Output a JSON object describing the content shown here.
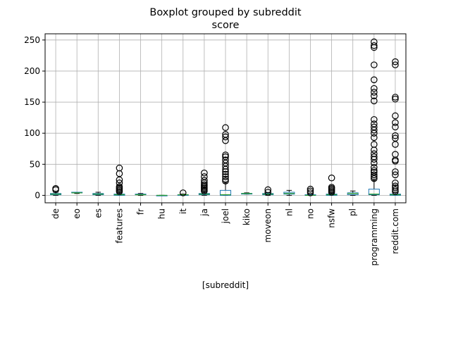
{
  "chart_data": {
    "type": "boxplot",
    "title": "Boxplot grouped by subreddit",
    "subtitle": "score",
    "xlabel": "[subreddit]",
    "ylabel": "",
    "ylim": [
      -12,
      260
    ],
    "yticks": [
      0,
      50,
      100,
      150,
      200,
      250
    ],
    "grid": true,
    "colors": {
      "box": "#1f77b4",
      "median": "#2ca02c",
      "whisker": "#000000",
      "flier": "#000000",
      "grid": "#b0b0b0"
    },
    "categories": [
      "de",
      "eo",
      "es",
      "features",
      "fr",
      "hu",
      "it",
      "ja",
      "joel",
      "kiko",
      "moveon",
      "nl",
      "no",
      "nsfw",
      "pl",
      "programming",
      "reddit.com"
    ],
    "boxes": [
      {
        "category": "de",
        "min": 0,
        "q1": 1,
        "median": 2,
        "q3": 3,
        "max": 5,
        "fliers": [
          9,
          11
        ]
      },
      {
        "category": "eo",
        "min": 3,
        "q1": 4,
        "median": 4,
        "q3": 5,
        "max": 5,
        "fliers": []
      },
      {
        "category": "es",
        "min": 0,
        "q1": 1,
        "median": 2,
        "q3": 3,
        "max": 5,
        "fliers": []
      },
      {
        "category": "features",
        "min": 0,
        "q1": 0,
        "median": 1,
        "q3": 2,
        "max": 4,
        "fliers": [
          6,
          8,
          10,
          12,
          14,
          20,
          25,
          35,
          44
        ]
      },
      {
        "category": "fr",
        "min": 0,
        "q1": 1,
        "median": 1,
        "q3": 2,
        "max": 3,
        "fliers": []
      },
      {
        "category": "hu",
        "min": 0,
        "q1": 0,
        "median": 0,
        "q3": 0,
        "max": 0,
        "fliers": []
      },
      {
        "category": "it",
        "min": 0,
        "q1": 0,
        "median": 1,
        "q3": 1,
        "max": 2,
        "fliers": [
          4
        ]
      },
      {
        "category": "ja",
        "min": 0,
        "q1": 1,
        "median": 2,
        "q3": 3,
        "max": 5,
        "fliers": [
          7,
          9,
          11,
          13,
          15,
          17,
          20,
          24,
          30,
          36
        ]
      },
      {
        "category": "joel",
        "min": 0,
        "q1": 0,
        "median": 1,
        "q3": 8,
        "max": 20,
        "fliers": [
          23,
          26,
          30,
          34,
          38,
          42,
          47,
          52,
          57,
          62,
          65,
          88,
          94,
          98,
          109
        ]
      },
      {
        "category": "kiko",
        "min": 2,
        "q1": 3,
        "median": 3,
        "q3": 3,
        "max": 4,
        "fliers": []
      },
      {
        "category": "moveon",
        "min": 0,
        "q1": 1,
        "median": 2,
        "q3": 3,
        "max": 4,
        "fliers": [
          5,
          9
        ]
      },
      {
        "category": "nl",
        "min": 0,
        "q1": 2,
        "median": 3,
        "q3": 5,
        "max": 8,
        "fliers": []
      },
      {
        "category": "no",
        "min": 0,
        "q1": 0,
        "median": 0,
        "q3": 1,
        "max": 2,
        "fliers": [
          4,
          7,
          10
        ]
      },
      {
        "category": "nsfw",
        "min": 0,
        "q1": 0,
        "median": 1,
        "q3": 2,
        "max": 4,
        "fliers": [
          5,
          7,
          9,
          11,
          13,
          28
        ]
      },
      {
        "category": "pl",
        "min": 0,
        "q1": 1,
        "median": 3,
        "q3": 4,
        "max": 7,
        "fliers": []
      },
      {
        "category": "programming",
        "min": 0,
        "q1": 1,
        "median": 2,
        "q3": 10,
        "max": 24,
        "fliers": [
          27,
          30,
          33,
          37,
          40,
          45,
          52,
          58,
          62,
          67,
          73,
          82,
          93,
          100,
          105,
          110,
          115,
          122,
          152,
          160,
          166,
          172,
          186,
          210,
          238,
          241,
          247
        ]
      },
      {
        "category": "reddit.com",
        "min": 0,
        "q1": 0,
        "median": 1,
        "q3": 2,
        "max": 4,
        "fliers": [
          6,
          9,
          12,
          15,
          20,
          33,
          38,
          55,
          57,
          66,
          82,
          92,
          96,
          110,
          117,
          128,
          155,
          158,
          210,
          215
        ]
      }
    ]
  }
}
